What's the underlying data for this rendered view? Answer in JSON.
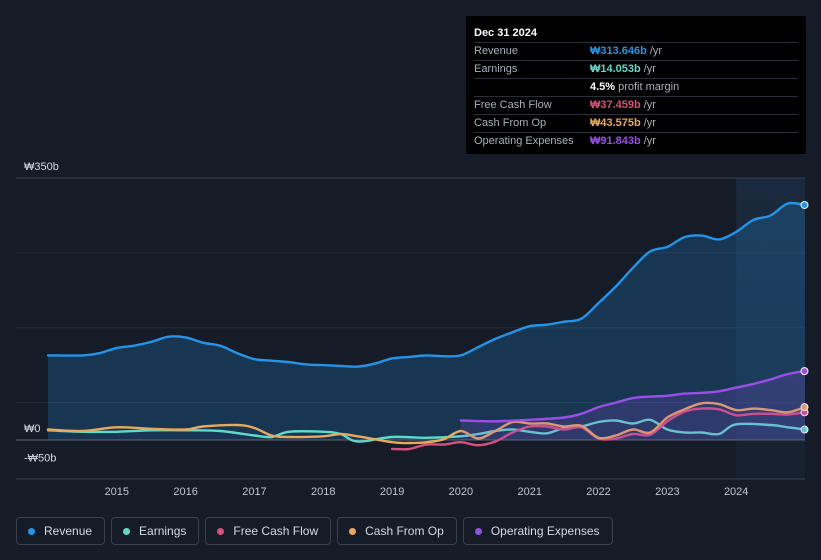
{
  "tooltip": {
    "date": "Dec 31 2024",
    "rows": [
      {
        "label": "Revenue",
        "value": "₩313.646b",
        "unit": "/yr",
        "color": "#2394e8"
      },
      {
        "label": "Earnings",
        "value": "₩14.053b",
        "unit": "/yr",
        "color": "#5fd9c9"
      },
      {
        "label": "",
        "value": "4.5%",
        "unit": "profit margin",
        "color": "#ffffff"
      },
      {
        "label": "Free Cash Flow",
        "value": "₩37.459b",
        "unit": "/yr",
        "color": "#d64f7d"
      },
      {
        "label": "Cash From Op",
        "value": "₩43.575b",
        "unit": "/yr",
        "color": "#e9a85b"
      },
      {
        "label": "Operating Expenses",
        "value": "₩91.843b",
        "unit": "/yr",
        "color": "#9a4ee8"
      }
    ]
  },
  "chart_data": {
    "type": "area",
    "title": "",
    "ylabel": "",
    "xlabel": "",
    "ylim": [
      -50,
      350
    ],
    "y_tick_labels": [
      {
        "value": 350,
        "label": "₩350b"
      },
      {
        "value": 0,
        "label": "₩0"
      },
      {
        "value": -50,
        "label": "-₩50b"
      }
    ],
    "xlim": [
      2014.0,
      2025.0
    ],
    "x_ticks": [
      2015,
      2016,
      2017,
      2018,
      2019,
      2020,
      2021,
      2022,
      2023,
      2024
    ],
    "highlight_from": 2024.0,
    "series": [
      {
        "name": "Revenue",
        "color": "#2394e8",
        "fill": true,
        "points": [
          [
            2014.0,
            113
          ],
          [
            2014.5,
            113
          ],
          [
            2014.75,
            116
          ],
          [
            2015.0,
            123
          ],
          [
            2015.25,
            126
          ],
          [
            2015.5,
            131
          ],
          [
            2015.75,
            138
          ],
          [
            2016.0,
            137
          ],
          [
            2016.25,
            130
          ],
          [
            2016.5,
            126
          ],
          [
            2016.75,
            116
          ],
          [
            2017.0,
            108
          ],
          [
            2017.25,
            106
          ],
          [
            2017.5,
            104
          ],
          [
            2017.75,
            101
          ],
          [
            2018.0,
            100
          ],
          [
            2018.25,
            99
          ],
          [
            2018.5,
            98
          ],
          [
            2018.75,
            102
          ],
          [
            2019.0,
            109
          ],
          [
            2019.25,
            111
          ],
          [
            2019.5,
            113
          ],
          [
            2019.75,
            112
          ],
          [
            2020.0,
            113
          ],
          [
            2020.25,
            124
          ],
          [
            2020.5,
            135
          ],
          [
            2020.75,
            144
          ],
          [
            2021.0,
            152
          ],
          [
            2021.25,
            154
          ],
          [
            2021.5,
            158
          ],
          [
            2021.75,
            162
          ],
          [
            2022.0,
            183
          ],
          [
            2022.25,
            205
          ],
          [
            2022.5,
            230
          ],
          [
            2022.75,
            252
          ],
          [
            2023.0,
            258
          ],
          [
            2023.25,
            271
          ],
          [
            2023.5,
            273
          ],
          [
            2023.75,
            268
          ],
          [
            2024.0,
            278
          ],
          [
            2024.25,
            294
          ],
          [
            2024.5,
            300
          ],
          [
            2024.75,
            316
          ],
          [
            2025.0,
            314
          ]
        ]
      },
      {
        "name": "Earnings",
        "color": "#5fd9c9",
        "fill": false,
        "points": [
          [
            2014.0,
            13
          ],
          [
            2014.5,
            11
          ],
          [
            2015.0,
            11
          ],
          [
            2015.5,
            13
          ],
          [
            2016.0,
            13
          ],
          [
            2016.5,
            12
          ],
          [
            2017.0,
            6
          ],
          [
            2017.25,
            4
          ],
          [
            2017.5,
            11
          ],
          [
            2018.0,
            11
          ],
          [
            2018.25,
            8
          ],
          [
            2018.5,
            -2
          ],
          [
            2019.0,
            4
          ],
          [
            2019.5,
            3
          ],
          [
            2020.0,
            5
          ],
          [
            2020.25,
            8
          ],
          [
            2020.5,
            12
          ],
          [
            2020.75,
            14
          ],
          [
            2021.0,
            11
          ],
          [
            2021.25,
            9
          ],
          [
            2021.5,
            16
          ],
          [
            2021.75,
            18
          ],
          [
            2022.0,
            24
          ],
          [
            2022.25,
            26
          ],
          [
            2022.5,
            22
          ],
          [
            2022.75,
            27
          ],
          [
            2023.0,
            14
          ],
          [
            2023.25,
            10
          ],
          [
            2023.5,
            10
          ],
          [
            2023.75,
            8
          ],
          [
            2024.0,
            21
          ],
          [
            2024.5,
            20
          ],
          [
            2024.75,
            17
          ],
          [
            2025.0,
            14
          ]
        ]
      },
      {
        "name": "Free Cash Flow",
        "color": "#d64f7d",
        "fill": false,
        "points": [
          [
            2019.0,
            -12
          ],
          [
            2019.25,
            -12
          ],
          [
            2019.5,
            -6
          ],
          [
            2019.75,
            -6
          ],
          [
            2020.0,
            -3
          ],
          [
            2020.25,
            -7
          ],
          [
            2020.5,
            -2
          ],
          [
            2020.75,
            10
          ],
          [
            2021.0,
            18
          ],
          [
            2021.25,
            18
          ],
          [
            2021.5,
            14
          ],
          [
            2021.75,
            17
          ],
          [
            2022.0,
            2
          ],
          [
            2022.25,
            2
          ],
          [
            2022.5,
            8
          ],
          [
            2022.75,
            7
          ],
          [
            2023.0,
            25
          ],
          [
            2023.25,
            38
          ],
          [
            2023.5,
            42
          ],
          [
            2023.75,
            41
          ],
          [
            2024.0,
            33
          ],
          [
            2024.25,
            35
          ],
          [
            2024.5,
            35
          ],
          [
            2024.75,
            34
          ],
          [
            2025.0,
            37
          ]
        ]
      },
      {
        "name": "Cash From Op",
        "color": "#e9a85b",
        "fill": false,
        "points": [
          [
            2014.0,
            14
          ],
          [
            2014.5,
            12
          ],
          [
            2015.0,
            17
          ],
          [
            2015.5,
            15
          ],
          [
            2016.0,
            14
          ],
          [
            2016.25,
            18
          ],
          [
            2016.75,
            20
          ],
          [
            2017.0,
            16
          ],
          [
            2017.25,
            6
          ],
          [
            2017.5,
            4
          ],
          [
            2018.0,
            5
          ],
          [
            2018.25,
            8
          ],
          [
            2018.5,
            5
          ],
          [
            2019.0,
            -3
          ],
          [
            2019.25,
            -4
          ],
          [
            2019.5,
            -3
          ],
          [
            2019.75,
            1
          ],
          [
            2020.0,
            12
          ],
          [
            2020.25,
            2
          ],
          [
            2020.5,
            12
          ],
          [
            2020.75,
            24
          ],
          [
            2021.0,
            22
          ],
          [
            2021.25,
            22
          ],
          [
            2021.5,
            18
          ],
          [
            2021.75,
            19
          ],
          [
            2022.0,
            3
          ],
          [
            2022.25,
            6
          ],
          [
            2022.5,
            14
          ],
          [
            2022.75,
            10
          ],
          [
            2023.0,
            30
          ],
          [
            2023.25,
            41
          ],
          [
            2023.5,
            49
          ],
          [
            2023.75,
            48
          ],
          [
            2024.0,
            40
          ],
          [
            2024.25,
            42
          ],
          [
            2024.5,
            40
          ],
          [
            2024.75,
            37
          ],
          [
            2025.0,
            44
          ]
        ]
      },
      {
        "name": "Operating Expenses",
        "color": "#9a4ee8",
        "fill": true,
        "points": [
          [
            2020.0,
            26
          ],
          [
            2020.5,
            25
          ],
          [
            2021.0,
            27
          ],
          [
            2021.5,
            30
          ],
          [
            2021.75,
            35
          ],
          [
            2022.0,
            44
          ],
          [
            2022.25,
            50
          ],
          [
            2022.5,
            56
          ],
          [
            2022.75,
            58
          ],
          [
            2023.0,
            59
          ],
          [
            2023.25,
            62
          ],
          [
            2023.5,
            63
          ],
          [
            2023.75,
            65
          ],
          [
            2024.0,
            70
          ],
          [
            2024.25,
            75
          ],
          [
            2024.5,
            81
          ],
          [
            2024.75,
            88
          ],
          [
            2025.0,
            92
          ]
        ]
      }
    ]
  },
  "legend": [
    {
      "label": "Revenue",
      "color": "#2394e8"
    },
    {
      "label": "Earnings",
      "color": "#5fd9c9"
    },
    {
      "label": "Free Cash Flow",
      "color": "#d64f7d"
    },
    {
      "label": "Cash From Op",
      "color": "#e9a85b"
    },
    {
      "label": "Operating Expenses",
      "color": "#9a4ee8"
    }
  ]
}
